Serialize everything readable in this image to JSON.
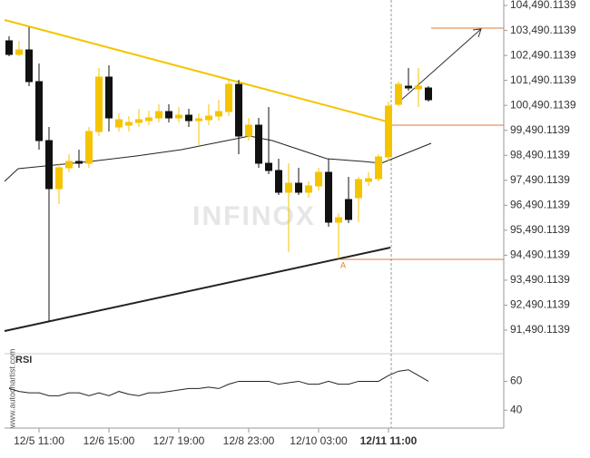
{
  "chart_data": {
    "type": "candlestick",
    "watermark": "INFINOX",
    "source": "www.autochartist.com",
    "marker_label": "A",
    "up_color": "#f5c400",
    "down_color": "#111111",
    "categories": [
      null,
      null,
      null,
      "12/5 11:00",
      null,
      null,
      null,
      null,
      null,
      null,
      "12/6 15:00",
      null,
      null,
      null,
      null,
      null,
      null,
      "12/7 19:00",
      null,
      null,
      null,
      null,
      null,
      null,
      "12/8 23:00",
      null,
      null,
      null,
      null,
      null,
      null,
      "12/10 03:00",
      null,
      null,
      null,
      null,
      null,
      null,
      "12/11 11:00",
      null,
      null,
      null,
      null
    ],
    "open": [
      103076,
      102531,
      102712,
      101441,
      99080,
      97155,
      97991,
      98245,
      98172,
      99444,
      101623,
      99625,
      99698,
      99807,
      99879,
      99988,
      100243,
      99988,
      100097,
      99879,
      99916,
      100061,
      100243,
      101332,
      99262,
      99698,
      98172,
      97882,
      97010,
      97373,
      97010,
      97264,
      97809,
      95812,
      96720,
      96792,
      97446,
      97555,
      98427,
      100533,
      101260,
      101151,
      101187
    ],
    "high": [
      103257,
      103076,
      103620,
      102168,
      99625,
      98172,
      98536,
      98717,
      99625,
      101986,
      102095,
      100170,
      100061,
      100352,
      100279,
      100533,
      100533,
      100424,
      100352,
      100170,
      100533,
      100715,
      101514,
      101514,
      99988,
      99988,
      100424,
      98354,
      98172,
      97991,
      97446,
      97991,
      98354,
      96175,
      97628,
      97628,
      97809,
      98536,
      100642,
      101441,
      101986,
      101986,
      101260
    ],
    "low": [
      102458,
      102458,
      101260,
      98717,
      91816,
      96538,
      97809,
      97991,
      97991,
      99262,
      99444,
      99444,
      99444,
      99625,
      99698,
      99807,
      99807,
      99807,
      99625,
      98899,
      99698,
      99879,
      100061,
      98536,
      99080,
      97991,
      97737,
      96901,
      94613,
      96901,
      96792,
      97083,
      95630,
      94359,
      95775,
      95812,
      97264,
      97446,
      98245,
      100461,
      101078,
      100424,
      100642
    ],
    "close": [
      102531,
      102712,
      101441,
      99080,
      97155,
      97991,
      98245,
      98172,
      99444,
      101623,
      99988,
      99916,
      99807,
      99916,
      99988,
      100243,
      99988,
      100097,
      99879,
      99952,
      100061,
      100243,
      101332,
      99262,
      99698,
      98172,
      97882,
      97010,
      97373,
      97010,
      97264,
      97809,
      95812,
      95993,
      95921,
      97519,
      97555,
      98427,
      100461,
      101332,
      101187,
      101260,
      100715
    ],
    "ylim": [
      91090,
      104710
    ],
    "yticks": [
      {
        "value": 104490.1139,
        "label": "104,490.1139"
      },
      {
        "value": 103490.1139,
        "label": "103,490.1139"
      },
      {
        "value": 102490.1139,
        "label": "102,490.1139"
      },
      {
        "value": 101490.1139,
        "label": "101,490.1139"
      },
      {
        "value": 100490.1139,
        "label": "100,490.1139"
      },
      {
        "value": 99490.1139,
        "label": "99,490.1139"
      },
      {
        "value": 98490.1139,
        "label": "98,490.1139"
      },
      {
        "value": 97490.1139,
        "label": "97,490.1139"
      },
      {
        "value": 96490.1139,
        "label": "96,490.1139"
      },
      {
        "value": 95490.1139,
        "label": "95,490.1139"
      },
      {
        "value": 94490.1139,
        "label": "94,490.1139"
      },
      {
        "value": 93490.1139,
        "label": "93,490.1139"
      },
      {
        "value": 92490.1139,
        "label": "92,490.1139"
      },
      {
        "value": 91490.1139,
        "label": "91,490.1139"
      }
    ],
    "rsi": {
      "label": "RSI",
      "color": "#222222",
      "values": [
        55,
        53,
        52,
        52,
        50,
        50,
        52,
        52,
        50,
        52,
        50,
        53,
        51,
        50,
        52,
        52,
        53,
        54,
        55,
        55,
        56,
        55,
        58,
        60,
        60,
        60,
        60,
        58,
        59,
        60,
        58,
        58,
        60,
        58,
        58,
        60,
        60,
        60,
        64,
        67,
        68,
        64,
        60
      ],
      "ylim": [
        32,
        76
      ],
      "yticks": [
        40,
        60
      ]
    }
  }
}
